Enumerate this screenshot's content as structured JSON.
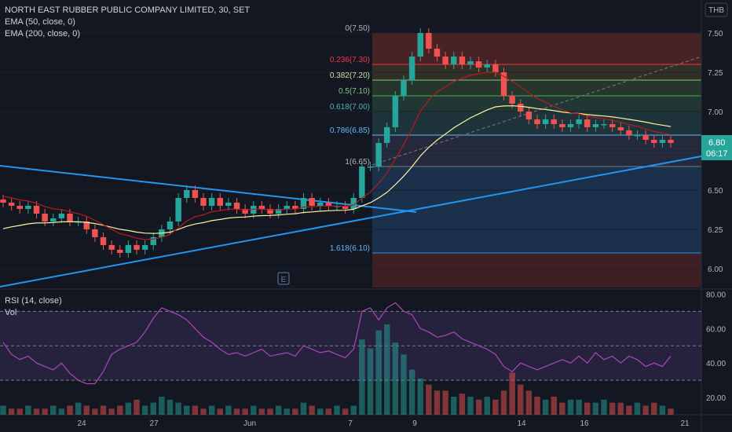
{
  "header": {
    "title": "NORTH EAST RUBBER PUBLIC COMPANY LIMITED, 30, SET",
    "indicators": [
      "EMA (50, close, 0)",
      "EMA (200, close, 0)"
    ],
    "currency": "THB"
  },
  "price_badge": {
    "value": "6.80",
    "countdown": "06:17"
  },
  "rsi_panel": {
    "title": "RSI (14, close)",
    "vol_label": "Vol"
  },
  "e_marker": "E",
  "colors": {
    "bg": "#131722",
    "up": "#26a69a",
    "down": "#ef5350",
    "ema50": "#b71c1c",
    "ema200": "#fff59d",
    "trend": "#2196f3",
    "rsi": "#9c27b0"
  },
  "chart_data": {
    "type": "candlestick",
    "price_axis": {
      "ticks": [
        "7.50",
        "7.25",
        "7.00",
        "6.75",
        "6.50",
        "6.25",
        "6.00"
      ],
      "values": [
        7.5,
        7.25,
        7.0,
        6.75,
        6.5,
        6.25,
        6.0
      ],
      "range": [
        5.88,
        7.56
      ]
    },
    "rsi_axis": {
      "ticks": [
        "80.00",
        "60.00",
        "40.00",
        "20.00"
      ],
      "values": [
        80,
        60,
        40,
        20
      ],
      "range": [
        10,
        82
      ],
      "bands": [
        30,
        50,
        70
      ]
    },
    "time_axis": {
      "ticks": [
        "24",
        "27",
        "Jun",
        "7",
        "9",
        "14",
        "16",
        "21"
      ]
    },
    "fibonacci": [
      {
        "label": "0(7.50)",
        "price": 7.5
      },
      {
        "label": "0.236(7.30)",
        "price": 7.3
      },
      {
        "label": "0.382(7.20)",
        "price": 7.2
      },
      {
        "label": "0.5(7.10)",
        "price": 7.1
      },
      {
        "label": "0.618(7.00)",
        "price": 7.0
      },
      {
        "label": "0.786(6.85)",
        "price": 6.85
      },
      {
        "label": "1(6.65)",
        "price": 6.65
      },
      {
        "label": "1.618(6.10)",
        "price": 6.1
      }
    ],
    "closes": [
      6.42,
      6.4,
      6.38,
      6.4,
      6.35,
      6.3,
      6.32,
      6.35,
      6.3,
      6.3,
      6.25,
      6.2,
      6.15,
      6.12,
      6.1,
      6.15,
      6.12,
      6.15,
      6.2,
      6.25,
      6.3,
      6.45,
      6.5,
      6.45,
      6.4,
      6.45,
      6.4,
      6.42,
      6.38,
      6.35,
      6.4,
      6.38,
      6.35,
      6.38,
      6.4,
      6.38,
      6.45,
      6.4,
      6.42,
      6.4,
      6.4,
      6.38,
      6.45,
      6.65,
      6.65,
      6.8,
      6.9,
      7.1,
      7.2,
      7.35,
      7.5,
      7.4,
      7.35,
      7.3,
      7.35,
      7.3,
      7.32,
      7.28,
      7.3,
      7.25,
      7.1,
      7.05,
      7.0,
      6.95,
      6.92,
      6.95,
      6.92,
      6.9,
      6.92,
      6.95,
      6.9,
      6.92,
      6.92,
      6.9,
      6.88,
      6.85,
      6.85,
      6.82,
      6.8,
      6.82,
      6.8
    ],
    "rsi_values": [
      52,
      45,
      42,
      44,
      40,
      38,
      36,
      40,
      34,
      30,
      28,
      28,
      35,
      45,
      48,
      50,
      52,
      58,
      66,
      72,
      70,
      68,
      65,
      60,
      55,
      52,
      48,
      45,
      46,
      44,
      46,
      48,
      44,
      45,
      46,
      44,
      50,
      48,
      46,
      47,
      45,
      43,
      48,
      70,
      72,
      65,
      72,
      75,
      70,
      68,
      60,
      58,
      55,
      56,
      58,
      54,
      52,
      50,
      48,
      45,
      38,
      35,
      40,
      38,
      36,
      38,
      40,
      42,
      40,
      44,
      40,
      46,
      42,
      44,
      40,
      44,
      42,
      38,
      40,
      38,
      44
    ],
    "volume": [
      3,
      2,
      2,
      3,
      2,
      2,
      3,
      2,
      3,
      4,
      3,
      2,
      3,
      2,
      3,
      4,
      5,
      3,
      4,
      6,
      5,
      4,
      3,
      3,
      2,
      3,
      2,
      3,
      2,
      2,
      3,
      2,
      2,
      3,
      2,
      2,
      4,
      3,
      2,
      2,
      3,
      2,
      3,
      25,
      22,
      28,
      30,
      24,
      20,
      15,
      12,
      10,
      8,
      8,
      6,
      7,
      6,
      5,
      6,
      5,
      8,
      14,
      10,
      8,
      6,
      5,
      6,
      4,
      5,
      5,
      4,
      4,
      5,
      4,
      4,
      3,
      4,
      3,
      4,
      3,
      2
    ]
  }
}
